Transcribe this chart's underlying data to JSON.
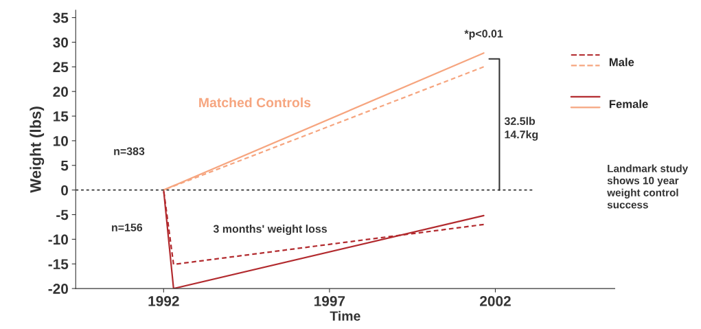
{
  "chart_data": {
    "type": "line",
    "xlabel": "Time",
    "ylabel": "Weight (lbs)",
    "xlim": [
      1989.35,
      2005.6
    ],
    "xticks": [
      1992,
      1997,
      2002
    ],
    "ylim": [
      -20,
      36.5
    ],
    "yticks": [
      -20,
      -15,
      -10,
      -5,
      0,
      5,
      10,
      15,
      20,
      25,
      30,
      35
    ],
    "grid": false,
    "legend": "right",
    "marker": "none",
    "series": [
      {
        "name": "Male",
        "color": "#b22a2e",
        "line_style": "dashed",
        "x": [
          1992,
          1992.3,
          2001.65
        ],
        "values": [
          0,
          -15.1,
          -7
        ]
      },
      {
        "color": "#f6a57f",
        "line_style": "dashed",
        "x": [
          1992,
          2001.65
        ],
        "values": [
          0,
          25
        ]
      },
      {
        "name": "Female",
        "color": "#b22a2e",
        "line_style": "solid",
        "x": [
          1992,
          1992.3,
          2001.65
        ],
        "values": [
          0,
          -20,
          -5.2
        ]
      },
      {
        "color": "#f6a57f",
        "line_style": "solid",
        "x": [
          1992,
          2001.65
        ],
        "values": [
          0,
          27.8
        ]
      }
    ],
    "ref_lines": [
      {
        "axis": "y",
        "value": 0,
        "color": "#333333",
        "line_style": "dotted"
      }
    ],
    "annotations": [
      "Matched Controls",
      "n=383",
      "n=156",
      "3 months' weight loss",
      {
        "text": "*p<0.01",
        "x": 2001.65,
        "y": 27.8
      },
      "32.5lb\n14.7kg",
      "Landmark study\nshows 10 year\nweight control\nsuccess"
    ]
  }
}
